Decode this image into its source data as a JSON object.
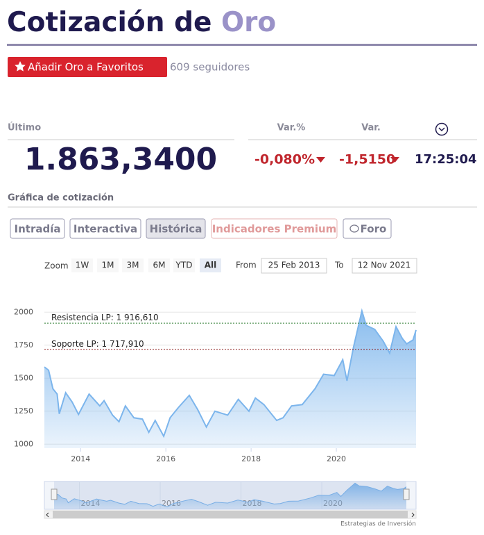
{
  "header": {
    "title_prefix": "Cotización de",
    "title_highlight": "Oro",
    "favorite_button": "Añadir Oro a Favoritos",
    "followers": "609 seguidores"
  },
  "quote": {
    "last_label": "Último",
    "last_value": "1.863,3400",
    "change_pct_label": "Var.%",
    "change_label": "Var.",
    "change_pct": "-0,080%",
    "change": "-1,5150",
    "time": "17:25:04"
  },
  "section_title": "Gráfica de cotización",
  "tabs": [
    "Intradía",
    "Interactiva",
    "Histórica",
    "Indicadores Premium",
    "Foro"
  ],
  "zoom": {
    "label": "Zoom",
    "buttons": [
      "1W",
      "1M",
      "3M",
      "6M",
      "YTD",
      "All"
    ],
    "from_label": "From",
    "from": "25 Feb 2013",
    "to_label": "To",
    "to": "12 Nov 2021"
  },
  "chart_data": {
    "type": "area",
    "color": "#7cb5ec",
    "grid": true,
    "x": [
      2013.15,
      2013.25,
      2013.35,
      2013.45,
      2013.5,
      2013.65,
      2013.8,
      2013.95,
      2014.2,
      2014.45,
      2014.55,
      2014.75,
      2014.9,
      2015.05,
      2015.25,
      2015.45,
      2015.6,
      2015.75,
      2015.95,
      2016.1,
      2016.3,
      2016.55,
      2016.75,
      2016.95,
      2017.15,
      2017.45,
      2017.7,
      2017.95,
      2018.1,
      2018.3,
      2018.6,
      2018.75,
      2018.95,
      2019.2,
      2019.5,
      2019.7,
      2019.95,
      2020.15,
      2020.25,
      2020.4,
      2020.6,
      2020.7,
      2020.9,
      2021.1,
      2021.25,
      2021.4,
      2021.55,
      2021.65,
      2021.8,
      2021.87
    ],
    "values": [
      1585,
      1560,
      1420,
      1380,
      1230,
      1390,
      1320,
      1225,
      1380,
      1290,
      1330,
      1220,
      1170,
      1290,
      1200,
      1190,
      1090,
      1180,
      1060,
      1200,
      1280,
      1370,
      1260,
      1130,
      1250,
      1220,
      1340,
      1250,
      1350,
      1300,
      1180,
      1200,
      1290,
      1300,
      1420,
      1530,
      1520,
      1640,
      1480,
      1730,
      2010,
      1900,
      1870,
      1780,
      1690,
      1890,
      1800,
      1760,
      1790,
      1865
    ],
    "xlim": [
      2013.15,
      2021.87
    ],
    "xticks": [
      2014,
      2016,
      2018,
      2020
    ],
    "ylim": [
      970,
      2075
    ],
    "yticks": [
      1000,
      1250,
      1500,
      1750,
      2000
    ],
    "levels": [
      {
        "value": 1916.61,
        "label": "Resistencia LP: 1 916,610",
        "color": "#2e7d32"
      },
      {
        "value": 1717.91,
        "label": "Soporte LP: 1 717,910",
        "color": "#8b1a1a"
      }
    ]
  },
  "credit": "Estrategias de Inversión"
}
